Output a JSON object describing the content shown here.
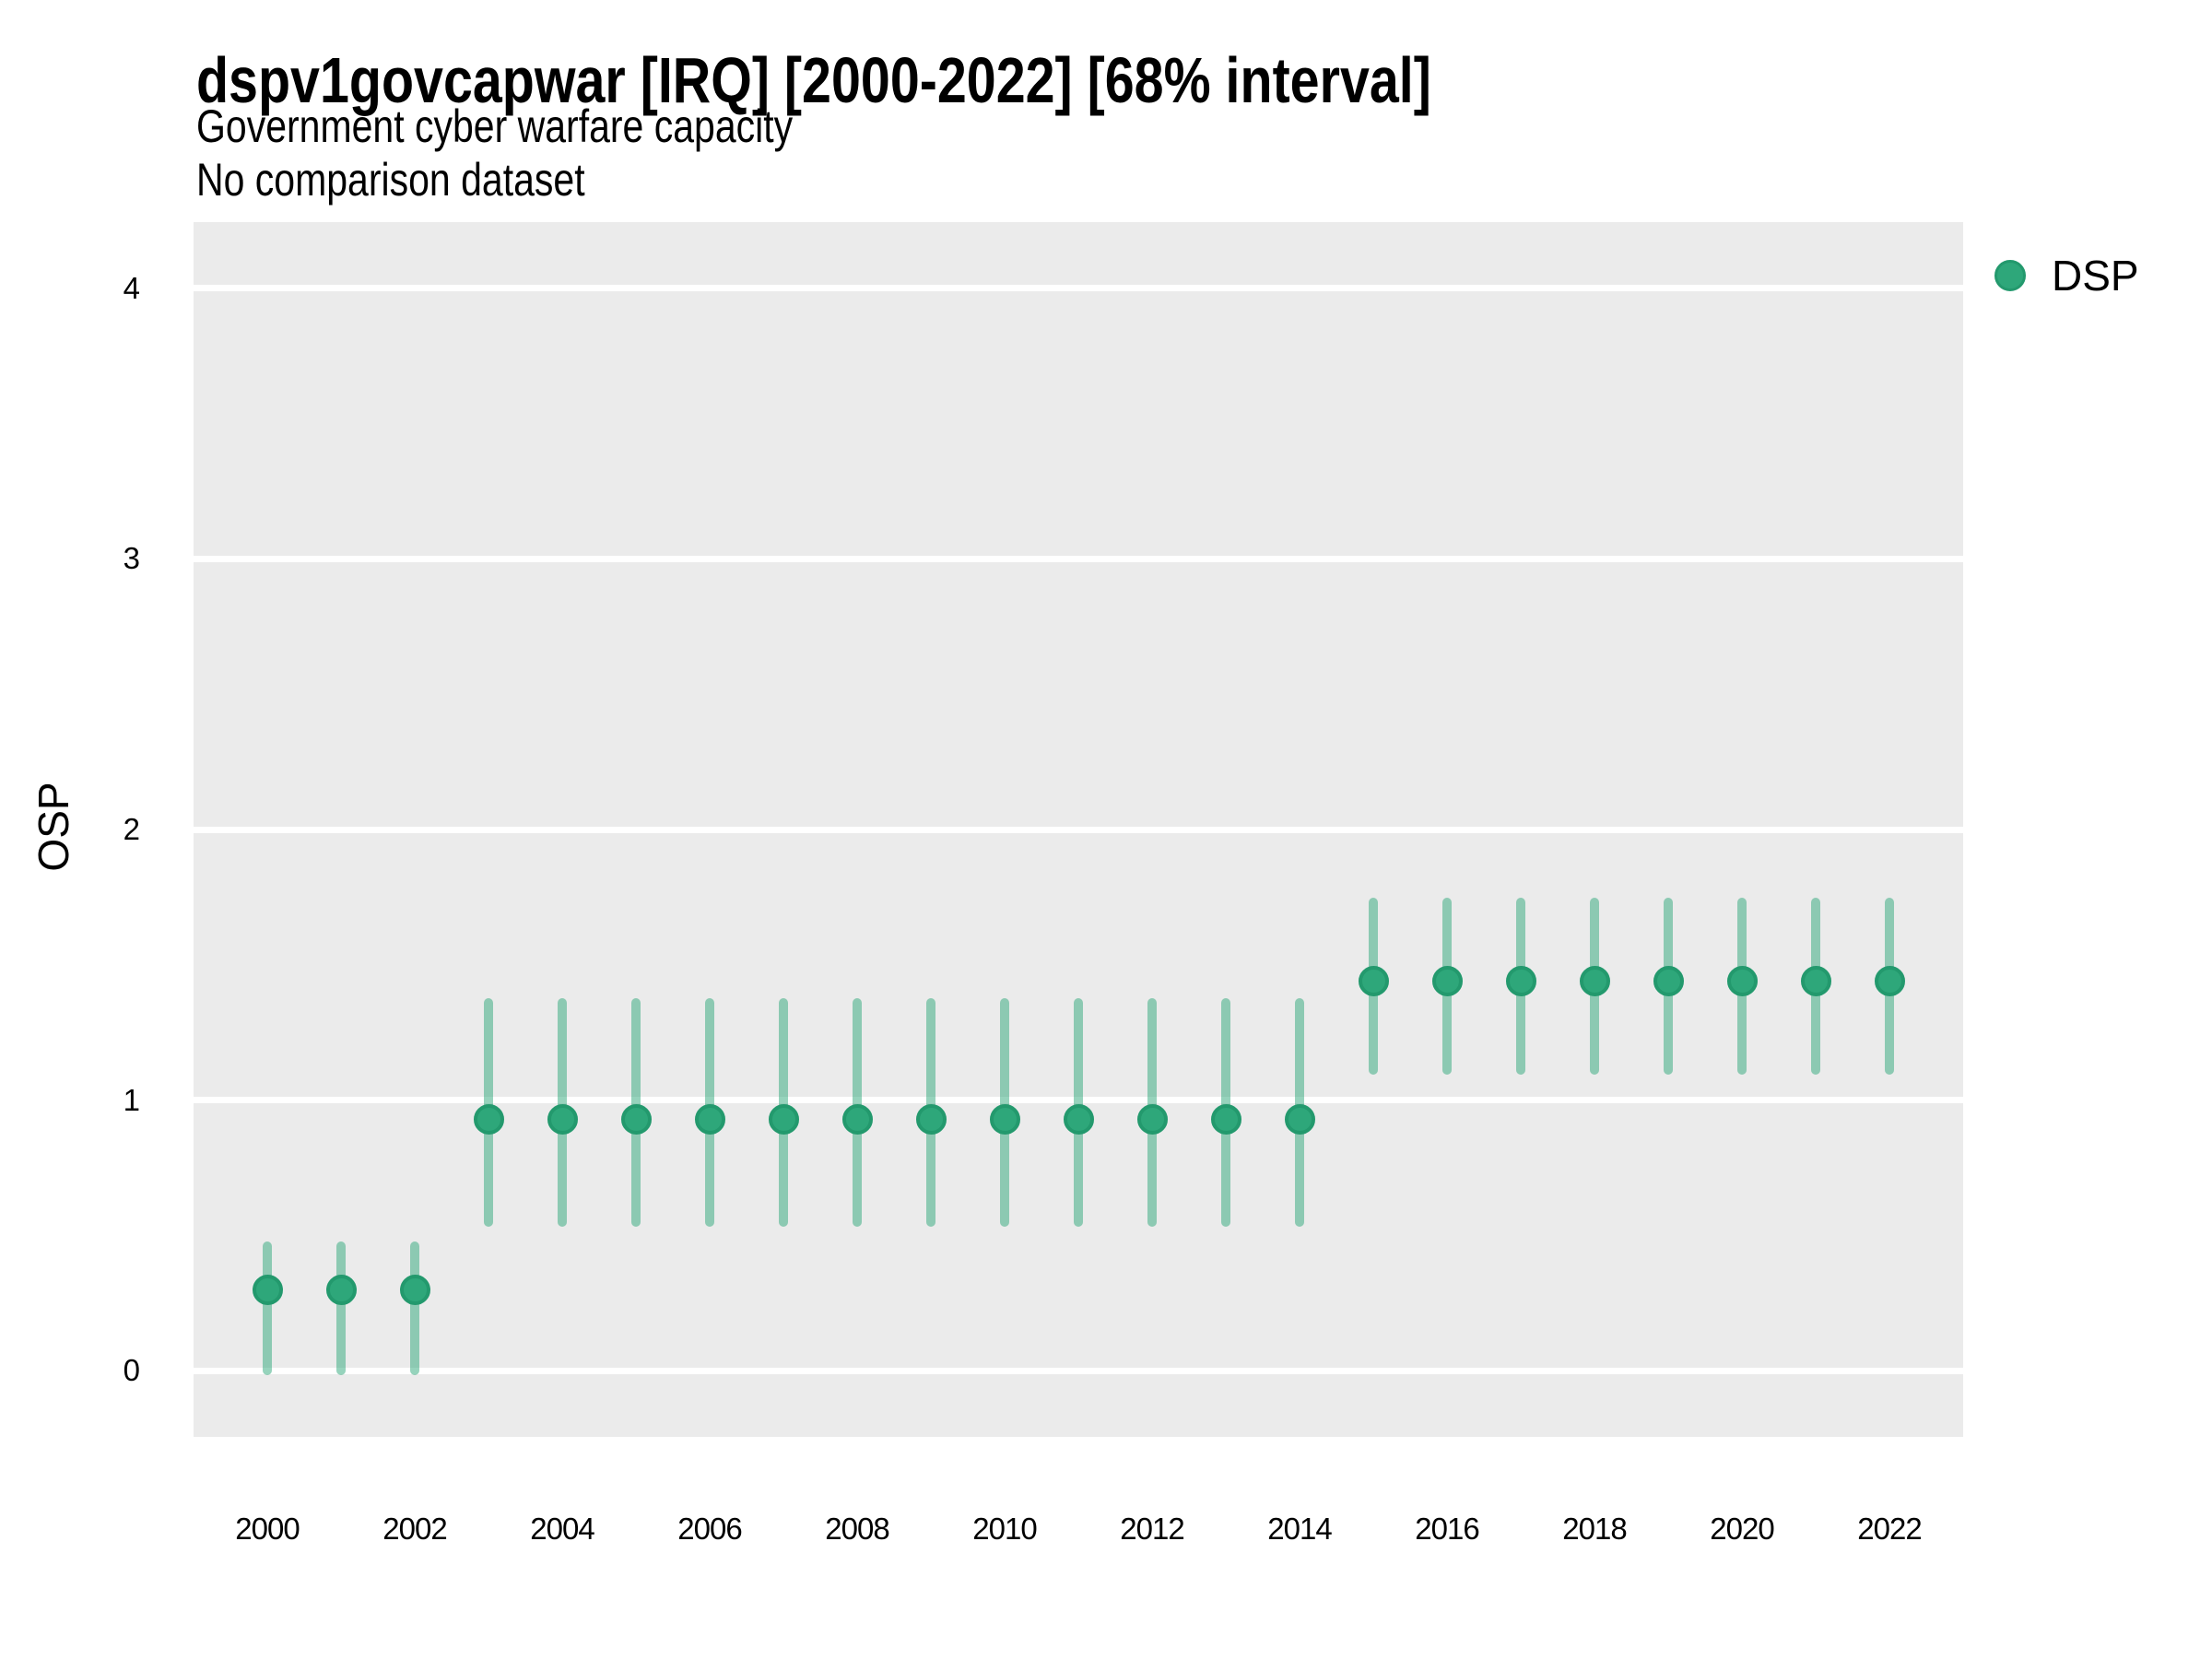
{
  "header": {
    "title": "dspv1govcapwar [IRQ] [2000-2022] [68% interval]",
    "subtitle1": "Government cyber warfare capacity",
    "subtitle2": "No comparison dataset"
  },
  "legend": {
    "label": "DSP"
  },
  "axes": {
    "y_title": "OSP",
    "y_ticks": [
      0,
      1,
      2,
      3,
      4
    ],
    "x_tick_years": [
      2000,
      2002,
      2004,
      2006,
      2008,
      2010,
      2012,
      2014,
      2016,
      2018,
      2020,
      2022
    ]
  },
  "colors": {
    "panel_background": "#ebebeb",
    "gridline": "#ffffff",
    "point_fill": "#2ea77a",
    "point_border": "#23996d",
    "interval_bar": "rgba(46, 167, 122, 0.5)",
    "text": "#000000"
  },
  "chart_data": {
    "type": "scatter",
    "title": "dspv1govcapwar [IRQ] [2000-2022] [68% interval]",
    "subtitle": "Government cyber warfare capacity",
    "caption": "No comparison dataset",
    "xlabel": "",
    "ylabel": "OSP",
    "legend_position": "right-top",
    "grid": "horizontal-major-only",
    "interval_label": "68% interval",
    "ylim": [
      -0.245,
      4.245
    ],
    "yticks": [
      0,
      1,
      2,
      3,
      4
    ],
    "x": [
      2000,
      2001,
      2002,
      2003,
      2004,
      2005,
      2006,
      2007,
      2008,
      2009,
      2010,
      2011,
      2012,
      2013,
      2014,
      2015,
      2016,
      2017,
      2018,
      2019,
      2020,
      2021,
      2022
    ],
    "series": [
      {
        "name": "DSP",
        "values": [
          0.3,
          0.3,
          0.3,
          0.93,
          0.93,
          0.93,
          0.93,
          0.93,
          0.93,
          0.93,
          0.93,
          0.93,
          0.93,
          0.93,
          0.93,
          1.44,
          1.44,
          1.44,
          1.44,
          1.44,
          1.44,
          1.44,
          1.44
        ],
        "low": [
          0.0,
          0.0,
          0.0,
          0.55,
          0.55,
          0.55,
          0.55,
          0.55,
          0.55,
          0.55,
          0.55,
          0.55,
          0.55,
          0.55,
          0.55,
          1.11,
          1.11,
          1.11,
          1.11,
          1.11,
          1.11,
          1.11,
          1.11
        ],
        "high": [
          0.46,
          0.46,
          0.46,
          1.36,
          1.36,
          1.36,
          1.36,
          1.36,
          1.36,
          1.36,
          1.36,
          1.36,
          1.36,
          1.36,
          1.36,
          1.73,
          1.73,
          1.73,
          1.73,
          1.73,
          1.73,
          1.73,
          1.73
        ]
      }
    ]
  }
}
